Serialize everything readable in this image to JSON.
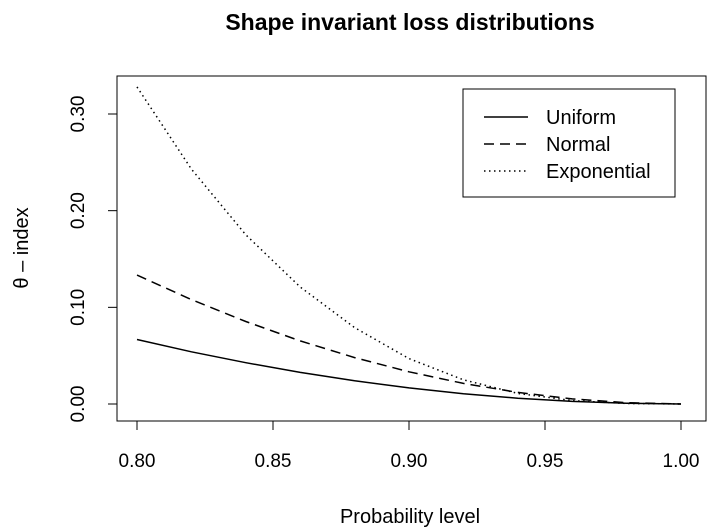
{
  "chart_data": {
    "type": "line",
    "title": "Shape invariant loss distributions",
    "xlabel": "Probability level",
    "ylabel": "θ – index",
    "xlim": [
      0.8,
      1.0
    ],
    "ylim": [
      0.0,
      0.33
    ],
    "x_ticks": [
      "0.80",
      "0.85",
      "0.90",
      "0.95",
      "1.00"
    ],
    "y_ticks": [
      "0.00",
      "0.10",
      "0.20",
      "0.30"
    ],
    "legend_position": "top-right",
    "grid": false,
    "x": [
      0.8,
      0.82,
      0.84,
      0.86,
      0.88,
      0.9,
      0.92,
      0.94,
      0.96,
      0.98,
      1.0
    ],
    "series": [
      {
        "name": "Uniform",
        "line_style": "solid",
        "color": "#000000",
        "values": [
          0.0667,
          0.054,
          0.0427,
          0.0327,
          0.024,
          0.0167,
          0.0107,
          0.006,
          0.0027,
          0.0007,
          0.0
        ]
      },
      {
        "name": "Normal",
        "line_style": "dashed",
        "color": "#000000",
        "values": [
          0.1333,
          0.108,
          0.0853,
          0.0653,
          0.048,
          0.0333,
          0.0213,
          0.012,
          0.0053,
          0.0013,
          0.0
        ]
      },
      {
        "name": "Exponential",
        "line_style": "dotted",
        "color": "#000000",
        "values": [
          0.328,
          0.243,
          0.175,
          0.121,
          0.079,
          0.047,
          0.025,
          0.011,
          0.0035,
          0.0005,
          0.0
        ]
      }
    ]
  }
}
